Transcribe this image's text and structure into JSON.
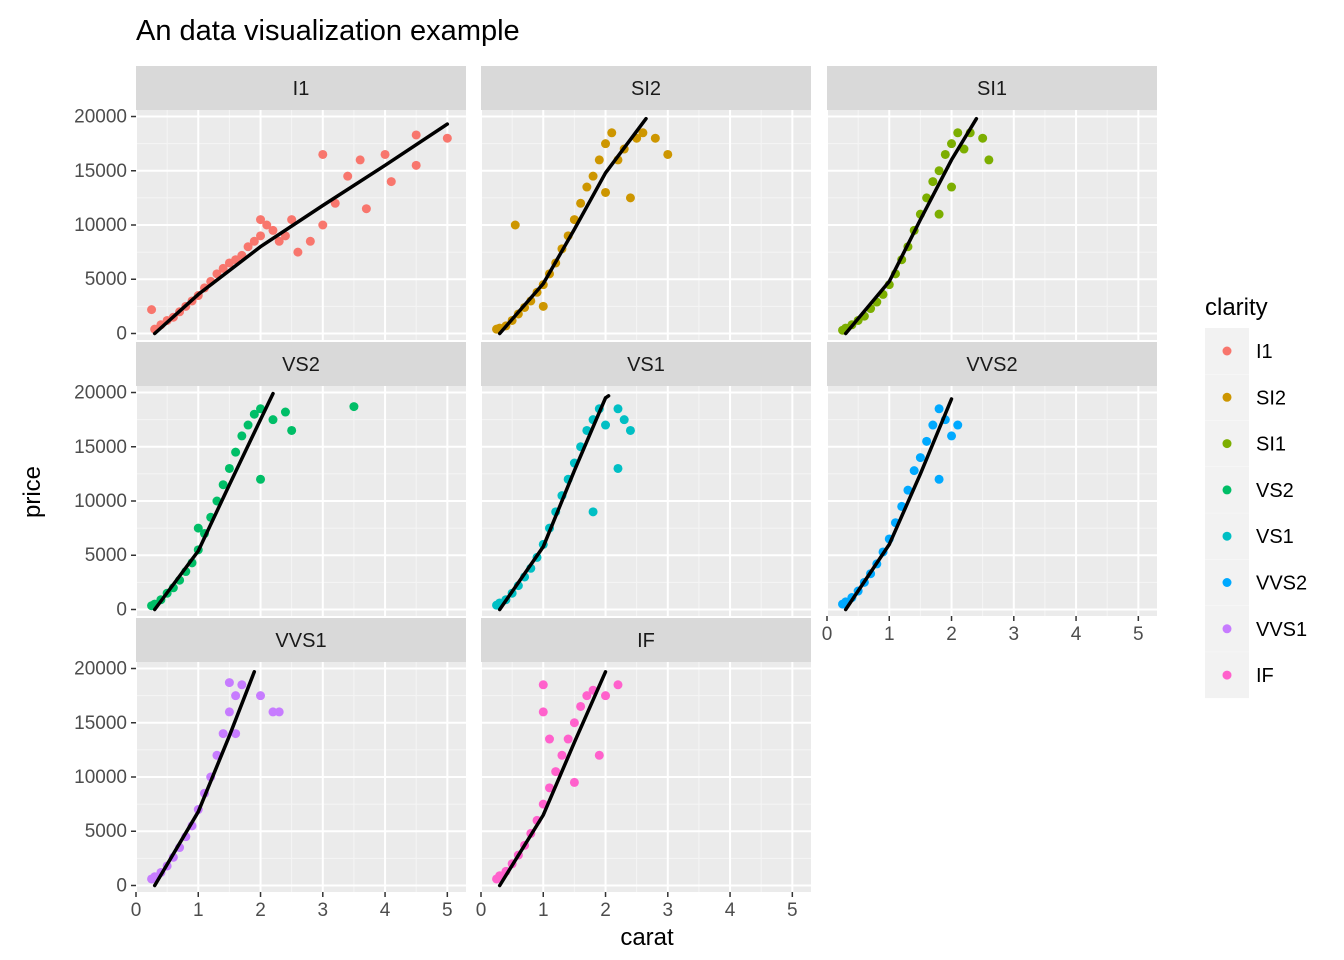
{
  "chart_data": {
    "type": "scatter",
    "title": "An data visualization example",
    "xlabel": "carat",
    "ylabel": "price",
    "xlim": [
      0,
      5.3
    ],
    "ylim": [
      -600,
      20600
    ],
    "x_ticks": [
      0,
      1,
      2,
      3,
      4,
      5
    ],
    "y_ticks": [
      0,
      5000,
      10000,
      15000,
      20000
    ],
    "x_tick_labels": [
      "0",
      "1",
      "2",
      "3",
      "4",
      "5"
    ],
    "y_tick_labels": [
      "0",
      "5000",
      "10000",
      "15000",
      "20000"
    ],
    "grid": true,
    "facet_by": "clarity",
    "legend": {
      "title": "clarity",
      "position": "right",
      "entries": [
        "I1",
        "SI2",
        "SI1",
        "VS2",
        "VS1",
        "VVS2",
        "VVS1",
        "IF"
      ]
    },
    "panels": [
      {
        "label": "I1",
        "color": "#F8766D",
        "points": [
          [
            0.3,
            400
          ],
          [
            0.25,
            2200
          ],
          [
            0.4,
            800
          ],
          [
            0.5,
            1200
          ],
          [
            0.6,
            1500
          ],
          [
            0.7,
            2000
          ],
          [
            0.8,
            2500
          ],
          [
            0.9,
            3000
          ],
          [
            1.0,
            3500
          ],
          [
            1.1,
            4200
          ],
          [
            1.2,
            4800
          ],
          [
            1.3,
            5500
          ],
          [
            1.4,
            6000
          ],
          [
            1.5,
            6500
          ],
          [
            1.6,
            6800
          ],
          [
            1.7,
            7200
          ],
          [
            1.8,
            8000
          ],
          [
            1.9,
            8500
          ],
          [
            2.0,
            9000
          ],
          [
            2.0,
            10500
          ],
          [
            2.1,
            10000
          ],
          [
            2.2,
            9500
          ],
          [
            2.3,
            8500
          ],
          [
            2.4,
            9000
          ],
          [
            2.5,
            10500
          ],
          [
            2.6,
            7500
          ],
          [
            2.8,
            8500
          ],
          [
            3.0,
            10000
          ],
          [
            3.0,
            16500
          ],
          [
            3.2,
            12000
          ],
          [
            3.4,
            14500
          ],
          [
            3.6,
            16000
          ],
          [
            3.7,
            11500
          ],
          [
            4.0,
            16500
          ],
          [
            4.1,
            14000
          ],
          [
            4.5,
            15500
          ],
          [
            4.5,
            18300
          ],
          [
            5.0,
            18000
          ]
        ],
        "fit": [
          [
            0.3,
            0
          ],
          [
            1.0,
            3600
          ],
          [
            2.0,
            8000
          ],
          [
            3.0,
            11800
          ],
          [
            4.0,
            15500
          ],
          [
            5.0,
            19300
          ]
        ]
      },
      {
        "label": "SI2",
        "color": "#CD9600",
        "points": [
          [
            0.25,
            400
          ],
          [
            0.3,
            500
          ],
          [
            0.4,
            700
          ],
          [
            0.5,
            1200
          ],
          [
            0.6,
            1800
          ],
          [
            0.7,
            2400
          ],
          [
            0.8,
            3000
          ],
          [
            0.9,
            3800
          ],
          [
            1.0,
            4500
          ],
          [
            1.0,
            2500
          ],
          [
            0.55,
            10000
          ],
          [
            1.1,
            5500
          ],
          [
            1.2,
            6500
          ],
          [
            1.3,
            7800
          ],
          [
            1.4,
            9000
          ],
          [
            1.5,
            10500
          ],
          [
            1.6,
            12000
          ],
          [
            1.7,
            13500
          ],
          [
            1.8,
            14500
          ],
          [
            1.9,
            16000
          ],
          [
            2.0,
            17500
          ],
          [
            2.0,
            13000
          ],
          [
            2.1,
            18500
          ],
          [
            2.2,
            16000
          ],
          [
            2.3,
            17000
          ],
          [
            2.5,
            18000
          ],
          [
            2.6,
            18500
          ],
          [
            2.8,
            18000
          ],
          [
            3.0,
            16500
          ],
          [
            2.4,
            12500
          ]
        ],
        "fit": [
          [
            0.3,
            0
          ],
          [
            1.0,
            4600
          ],
          [
            1.5,
            9600
          ],
          [
            2.0,
            14800
          ],
          [
            2.65,
            19800
          ]
        ]
      },
      {
        "label": "SI1",
        "color": "#7CAE00",
        "points": [
          [
            0.25,
            300
          ],
          [
            0.3,
            500
          ],
          [
            0.4,
            800
          ],
          [
            0.5,
            1200
          ],
          [
            0.6,
            1600
          ],
          [
            0.7,
            2300
          ],
          [
            0.8,
            2900
          ],
          [
            0.9,
            3600
          ],
          [
            1.0,
            4500
          ],
          [
            1.1,
            5500
          ],
          [
            1.2,
            6800
          ],
          [
            1.3,
            8000
          ],
          [
            1.4,
            9500
          ],
          [
            1.5,
            11000
          ],
          [
            1.6,
            12500
          ],
          [
            1.7,
            14000
          ],
          [
            1.8,
            15000
          ],
          [
            1.9,
            16500
          ],
          [
            2.0,
            17500
          ],
          [
            2.1,
            18500
          ],
          [
            2.2,
            17000
          ],
          [
            2.3,
            18500
          ],
          [
            2.5,
            18000
          ],
          [
            2.6,
            16000
          ],
          [
            2.0,
            13500
          ],
          [
            1.8,
            11000
          ]
        ],
        "fit": [
          [
            0.3,
            0
          ],
          [
            1.0,
            4800
          ],
          [
            1.5,
            10500
          ],
          [
            2.0,
            16000
          ],
          [
            2.4,
            19800
          ]
        ]
      },
      {
        "label": "VS2",
        "color": "#00BE67",
        "points": [
          [
            0.25,
            350
          ],
          [
            0.3,
            500
          ],
          [
            0.4,
            900
          ],
          [
            0.5,
            1500
          ],
          [
            0.6,
            2000
          ],
          [
            0.7,
            2700
          ],
          [
            0.8,
            3500
          ],
          [
            0.9,
            4300
          ],
          [
            1.0,
            5500
          ],
          [
            1.0,
            7500
          ],
          [
            1.1,
            7000
          ],
          [
            1.2,
            8500
          ],
          [
            1.3,
            10000
          ],
          [
            1.4,
            11500
          ],
          [
            1.5,
            13000
          ],
          [
            1.6,
            14500
          ],
          [
            1.7,
            16000
          ],
          [
            1.8,
            17000
          ],
          [
            1.9,
            18000
          ],
          [
            2.0,
            18500
          ],
          [
            2.2,
            17500
          ],
          [
            2.4,
            18200
          ],
          [
            2.5,
            16500
          ],
          [
            3.5,
            18700
          ],
          [
            2.0,
            12000
          ]
        ],
        "fit": [
          [
            0.3,
            0
          ],
          [
            1.0,
            5400
          ],
          [
            1.5,
            11500
          ],
          [
            2.0,
            17500
          ],
          [
            2.2,
            19900
          ]
        ]
      },
      {
        "label": "VS1",
        "color": "#00BFC4",
        "points": [
          [
            0.25,
            400
          ],
          [
            0.3,
            600
          ],
          [
            0.4,
            900
          ],
          [
            0.5,
            1500
          ],
          [
            0.6,
            2200
          ],
          [
            0.7,
            3000
          ],
          [
            0.8,
            3800
          ],
          [
            0.9,
            4800
          ],
          [
            1.0,
            6000
          ],
          [
            1.1,
            7500
          ],
          [
            1.2,
            9000
          ],
          [
            1.3,
            10500
          ],
          [
            1.4,
            12000
          ],
          [
            1.5,
            13500
          ],
          [
            1.6,
            15000
          ],
          [
            1.7,
            16500
          ],
          [
            1.8,
            17500
          ],
          [
            1.9,
            18500
          ],
          [
            2.0,
            17000
          ],
          [
            2.2,
            18500
          ],
          [
            2.3,
            17500
          ],
          [
            2.4,
            16500
          ],
          [
            2.2,
            13000
          ],
          [
            1.8,
            9000
          ]
        ],
        "fit": [
          [
            0.3,
            0
          ],
          [
            1.0,
            5800
          ],
          [
            1.5,
            12800
          ],
          [
            2.0,
            19500
          ],
          [
            2.05,
            19700
          ]
        ]
      },
      {
        "label": "VVS2",
        "color": "#00A9FF",
        "points": [
          [
            0.25,
            500
          ],
          [
            0.3,
            700
          ],
          [
            0.4,
            1100
          ],
          [
            0.5,
            1700
          ],
          [
            0.6,
            2500
          ],
          [
            0.7,
            3300
          ],
          [
            0.8,
            4200
          ],
          [
            0.9,
            5300
          ],
          [
            1.0,
            6500
          ],
          [
            1.1,
            8000
          ],
          [
            1.2,
            9500
          ],
          [
            1.3,
            11000
          ],
          [
            1.4,
            12800
          ],
          [
            1.5,
            14000
          ],
          [
            1.6,
            15500
          ],
          [
            1.7,
            17000
          ],
          [
            1.8,
            18500
          ],
          [
            1.9,
            17500
          ],
          [
            2.0,
            16000
          ],
          [
            2.1,
            17000
          ],
          [
            1.8,
            12000
          ]
        ],
        "fit": [
          [
            0.3,
            0
          ],
          [
            1.0,
            6000
          ],
          [
            1.5,
            12500
          ],
          [
            2.0,
            19400
          ]
        ]
      },
      {
        "label": "VVS1",
        "color": "#C77CFF",
        "points": [
          [
            0.25,
            600
          ],
          [
            0.3,
            800
          ],
          [
            0.4,
            1200
          ],
          [
            0.5,
            1800
          ],
          [
            0.6,
            2600
          ],
          [
            0.7,
            3500
          ],
          [
            0.8,
            4500
          ],
          [
            0.9,
            5500
          ],
          [
            1.0,
            7000
          ],
          [
            1.1,
            8500
          ],
          [
            1.2,
            10000
          ],
          [
            1.3,
            12000
          ],
          [
            1.4,
            14000
          ],
          [
            1.5,
            16000
          ],
          [
            1.6,
            17500
          ],
          [
            1.7,
            18500
          ],
          [
            1.5,
            18700
          ],
          [
            2.0,
            17500
          ],
          [
            2.2,
            16000
          ],
          [
            2.3,
            16000
          ],
          [
            1.6,
            14000
          ]
        ],
        "fit": [
          [
            0.3,
            0
          ],
          [
            1.0,
            6800
          ],
          [
            1.5,
            13800
          ],
          [
            1.9,
            19700
          ]
        ]
      },
      {
        "label": "IF",
        "color": "#FF61CC",
        "points": [
          [
            0.25,
            600
          ],
          [
            0.3,
            900
          ],
          [
            0.4,
            1300
          ],
          [
            0.5,
            2000
          ],
          [
            0.6,
            2800
          ],
          [
            0.7,
            3700
          ],
          [
            0.8,
            4800
          ],
          [
            0.9,
            6000
          ],
          [
            1.0,
            7500
          ],
          [
            1.0,
            16000
          ],
          [
            1.0,
            18500
          ],
          [
            1.1,
            9000
          ],
          [
            1.2,
            10500
          ],
          [
            1.3,
            12000
          ],
          [
            1.4,
            13500
          ],
          [
            1.5,
            15000
          ],
          [
            1.6,
            16500
          ],
          [
            1.7,
            17500
          ],
          [
            1.8,
            18000
          ],
          [
            2.0,
            17500
          ],
          [
            2.2,
            18500
          ],
          [
            1.9,
            12000
          ],
          [
            1.5,
            9500
          ],
          [
            1.1,
            13500
          ]
        ],
        "fit": [
          [
            0.3,
            0
          ],
          [
            1.0,
            6500
          ],
          [
            1.5,
            13200
          ],
          [
            2.0,
            19700
          ]
        ]
      }
    ]
  },
  "colors": {
    "panel_background": "#EBEBEB",
    "strip_background": "#D9D9D9",
    "fit_line": "#000000"
  }
}
